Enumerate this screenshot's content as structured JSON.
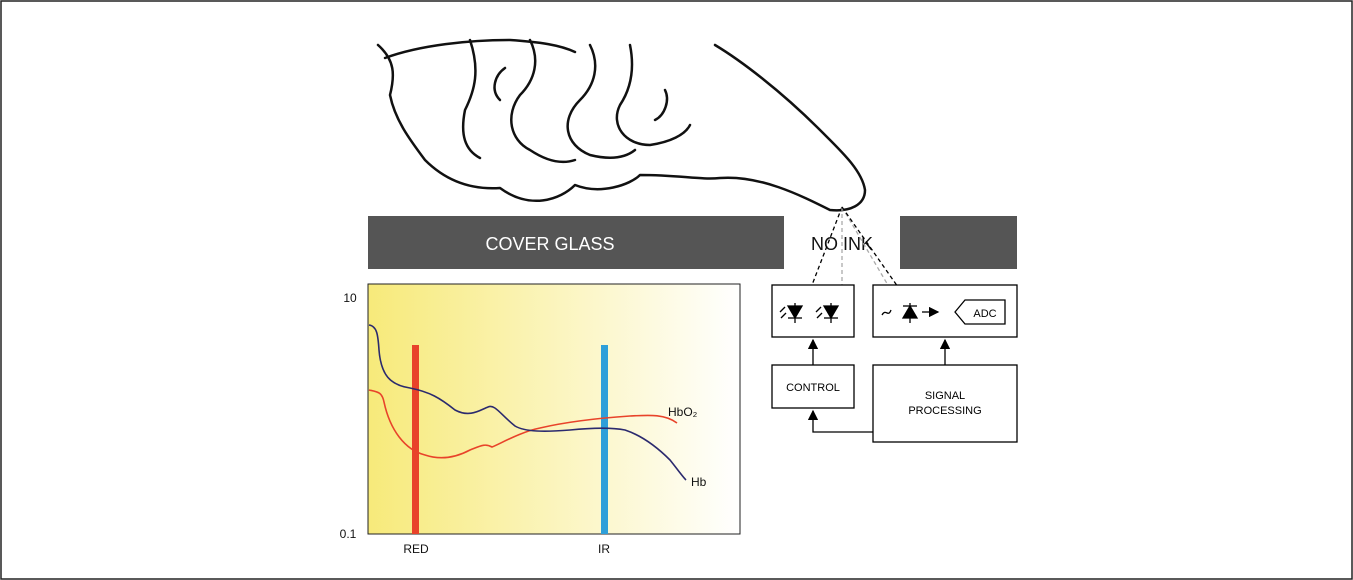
{
  "diagram": {
    "cover_glass_label": "COVER GLASS",
    "no_ink_label": "NO INK",
    "control_label": "CONTROL",
    "signal_processing_line1": "SIGNAL",
    "signal_processing_line2": "PROCESSING",
    "adc_label": "ADC"
  },
  "chart_data": {
    "type": "line",
    "ytick_top": "10",
    "ytick_bottom": "0.1",
    "yscale": "log",
    "ylim": [
      0.1,
      10
    ],
    "band_labels": [
      "RED",
      "IR"
    ],
    "series": [
      {
        "name": "HbO₂",
        "color": "#e8432a"
      },
      {
        "name": "Hb",
        "color": "#2b2a6e"
      }
    ],
    "band_colors": {
      "red": "#e8432a",
      "ir": "#2e9fd9"
    }
  },
  "colors": {
    "glass": "#555555",
    "background_gradient_start": "#f7ea7a",
    "background_gradient_end": "#ffffff"
  }
}
